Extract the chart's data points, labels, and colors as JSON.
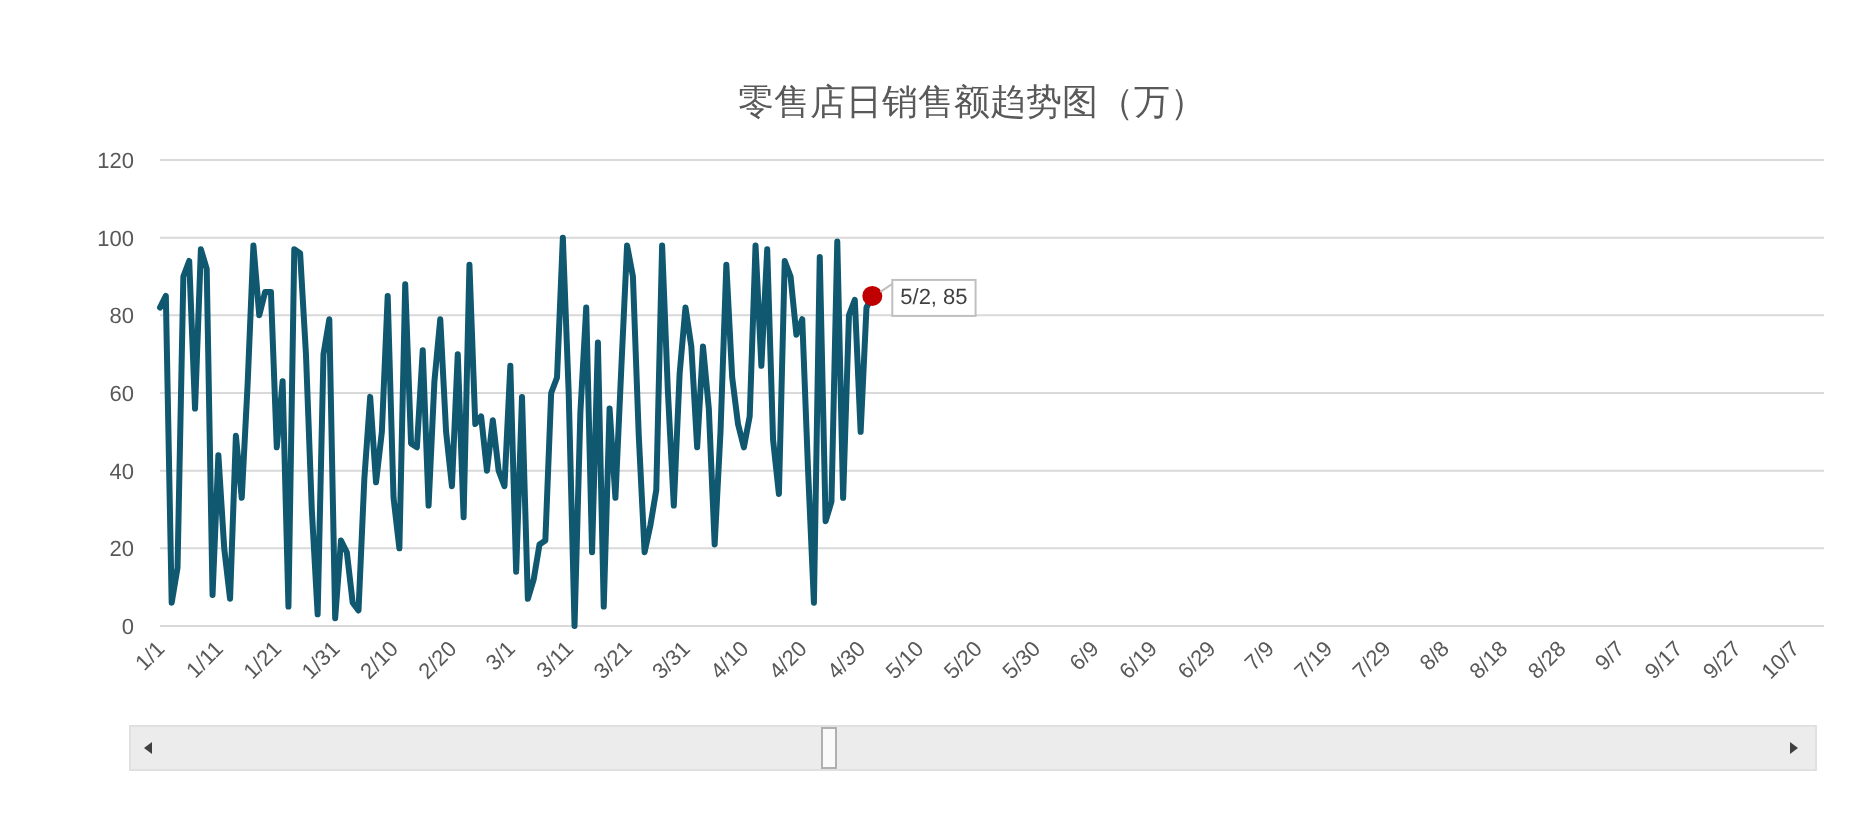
{
  "chart_data": {
    "type": "line",
    "title": "零售店日销售额趋势图（万）",
    "x": [
      "--01-01",
      "--01-02",
      "--01-03",
      "--01-04",
      "--01-05",
      "--01-06",
      "--01-07",
      "--01-08",
      "--01-09",
      "--01-10",
      "--01-11",
      "--01-12",
      "--01-13",
      "--01-14",
      "--01-15",
      "--01-16",
      "--01-17",
      "--01-18",
      "--01-19",
      "--01-20",
      "--01-21",
      "--01-22",
      "--01-23",
      "--01-24",
      "--01-25",
      "--01-26",
      "--01-27",
      "--01-28",
      "--01-29",
      "--01-30",
      "--01-31",
      "--02-01",
      "--02-02",
      "--02-03",
      "--02-04",
      "--02-05",
      "--02-06",
      "--02-07",
      "--02-08",
      "--02-09",
      "--02-10",
      "--02-11",
      "--02-12",
      "--02-13",
      "--02-14",
      "--02-15",
      "--02-16",
      "--02-17",
      "--02-18",
      "--02-19",
      "--02-20",
      "--02-21",
      "--02-22",
      "--02-23",
      "--02-24",
      "--02-25",
      "--02-26",
      "--02-27",
      "--02-28",
      "--02-29",
      "--03-01",
      "--03-02",
      "--03-03",
      "--03-04",
      "--03-05",
      "--03-06",
      "--03-07",
      "--03-08",
      "--03-09",
      "--03-10",
      "--03-11",
      "--03-12",
      "--03-13",
      "--03-14",
      "--03-15",
      "--03-16",
      "--03-17",
      "--03-18",
      "--03-19",
      "--03-20",
      "--03-21",
      "--03-22",
      "--03-23",
      "--03-24",
      "--03-25",
      "--03-26",
      "--03-27",
      "--03-28",
      "--03-29",
      "--03-30",
      "--03-31",
      "--04-01",
      "--04-02",
      "--04-03",
      "--04-04",
      "--04-05",
      "--04-06",
      "--04-07",
      "--04-08",
      "--04-09",
      "--04-10",
      "--04-11",
      "--04-12",
      "--04-13",
      "--04-14",
      "--04-15",
      "--04-16",
      "--04-17",
      "--04-18",
      "--04-19",
      "--04-20",
      "--04-21",
      "--04-22",
      "--04-23",
      "--04-24",
      "--04-25",
      "--04-26",
      "--04-27",
      "--04-28",
      "--04-29",
      "--04-30",
      "--05-01",
      "--05-02"
    ],
    "series": [
      {
        "color": "#0f5870",
        "values": [
          82,
          85,
          6,
          15,
          90,
          94,
          56,
          97,
          92,
          8,
          44,
          20,
          7,
          49,
          33,
          62,
          98,
          80,
          86,
          86,
          46,
          63,
          5,
          97,
          96,
          70,
          30,
          3,
          70,
          79,
          2,
          22,
          19,
          6,
          4,
          38,
          59,
          37,
          50,
          85,
          33,
          20,
          88,
          47,
          46,
          71,
          31,
          63,
          79,
          50,
          36,
          70,
          28,
          93,
          52,
          54,
          40,
          53,
          40,
          36,
          67,
          14,
          59,
          7,
          12,
          21,
          22,
          60,
          64,
          100,
          60,
          0,
          55,
          82,
          19,
          73,
          5,
          56,
          33,
          66,
          98,
          90,
          49,
          19,
          26,
          35,
          98,
          60,
          31,
          65,
          82,
          72,
          46,
          72,
          56,
          21,
          50,
          93,
          64,
          52,
          46,
          54,
          98,
          67,
          97,
          48,
          34,
          94,
          90,
          75,
          79,
          40,
          6,
          95,
          27,
          32,
          99,
          33,
          80,
          84,
          50,
          82,
          85
        ]
      }
    ],
    "xlim": [
      "--01-01",
      "--10-12"
    ],
    "xticks": [
      {
        "value": "--01-01",
        "label": "1/1"
      },
      {
        "value": "--01-11",
        "label": "1/11"
      },
      {
        "value": "--01-21",
        "label": "1/21"
      },
      {
        "value": "--01-31",
        "label": "1/31"
      },
      {
        "value": "--02-10",
        "label": "2/10"
      },
      {
        "value": "--02-20",
        "label": "2/20"
      },
      {
        "value": "--03-01",
        "label": "3/1"
      },
      {
        "value": "--03-11",
        "label": "3/11"
      },
      {
        "value": "--03-21",
        "label": "3/21"
      },
      {
        "value": "--03-31",
        "label": "3/31"
      },
      {
        "value": "--04-10",
        "label": "4/10"
      },
      {
        "value": "--04-20",
        "label": "4/20"
      },
      {
        "value": "--04-30",
        "label": "4/30"
      },
      {
        "value": "--05-10",
        "label": "5/10"
      },
      {
        "value": "--05-20",
        "label": "5/20"
      },
      {
        "value": "--05-30",
        "label": "5/30"
      },
      {
        "value": "--06-09",
        "label": "6/9"
      },
      {
        "value": "--06-19",
        "label": "6/19"
      },
      {
        "value": "--06-29",
        "label": "6/29"
      },
      {
        "value": "--07-09",
        "label": "7/9"
      },
      {
        "value": "--07-19",
        "label": "7/19"
      },
      {
        "value": "--07-29",
        "label": "7/29"
      },
      {
        "value": "--08-08",
        "label": "8/8"
      },
      {
        "value": "--08-18",
        "label": "8/18"
      },
      {
        "value": "--08-28",
        "label": "8/28"
      },
      {
        "value": "--09-07",
        "label": "9/7"
      },
      {
        "value": "--09-17",
        "label": "9/17"
      },
      {
        "value": "--09-27",
        "label": "9/27"
      },
      {
        "value": "--10-07",
        "label": "10/7"
      }
    ],
    "ylim": [
      0,
      120
    ],
    "yticks": [
      0,
      20,
      40,
      60,
      80,
      100,
      120
    ],
    "grid": "y",
    "annotations": [
      {
        "text": "5/2, 85",
        "x": "--05-02",
        "y": 85
      }
    ]
  }
}
